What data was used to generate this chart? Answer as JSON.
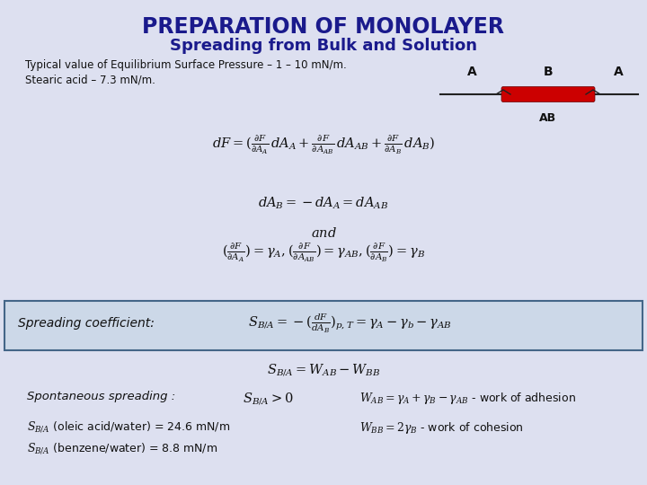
{
  "title": "PREPARATION OF MONOLAYER",
  "subtitle": "Spreading from Bulk and Solution",
  "bg_color": "#dde0f0",
  "title_color": "#1a1a8c",
  "subtitle_color": "#1a1a8c",
  "body_text_color": "#111111",
  "red_bar_color": "#cc0000",
  "typical_text": "Typical value of Equilibrium Surface Pressure – 1 – 10 mN/m.",
  "stearic_text": "Stearic acid – 7.3 mN/m.",
  "box_facecolor": "#ccd8e8",
  "box_edgecolor": "#446688"
}
